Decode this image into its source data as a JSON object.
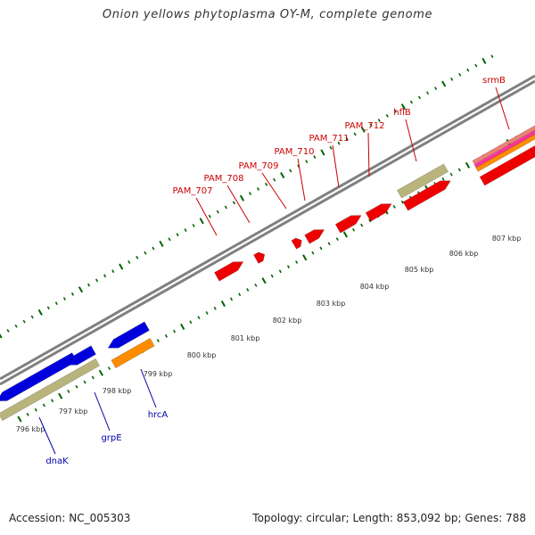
{
  "title": "Onion yellows phytoplasma OY-M, complete genome",
  "footer": {
    "accession": "Accession: NC_005303",
    "summary": "Topology: circular; Length: 853,092 bp; Genes: 788"
  },
  "colors": {
    "backbone": "#808080",
    "forward_gene": "#ee0000",
    "reverse_gene": "#0000dd",
    "cds_khaki": "#b8b47c",
    "orange_feature": "#ff8c00",
    "pink_feature": "#ff3399",
    "salmon_feature": "#f08070",
    "tick": "#006400",
    "label_red": "#cc0000",
    "label_blue": "#0000aa"
  },
  "ruler": {
    "labels": [
      "796 kbp",
      "797 kbp",
      "798 kbp",
      "799 kbp",
      "800 kbp",
      "801 kbp",
      "802 kbp",
      "803 kbp",
      "804 kbp",
      "805 kbp",
      "806 kbp",
      "807 kbp"
    ]
  },
  "genes": {
    "forward": [
      "PAM_707",
      "PAM_708",
      "PAM_709",
      "PAM_710",
      "PAM_711",
      "PAM_712",
      "hflB",
      "srmB"
    ],
    "reverse": [
      "dnaK",
      "grpE",
      "hrcA"
    ]
  }
}
